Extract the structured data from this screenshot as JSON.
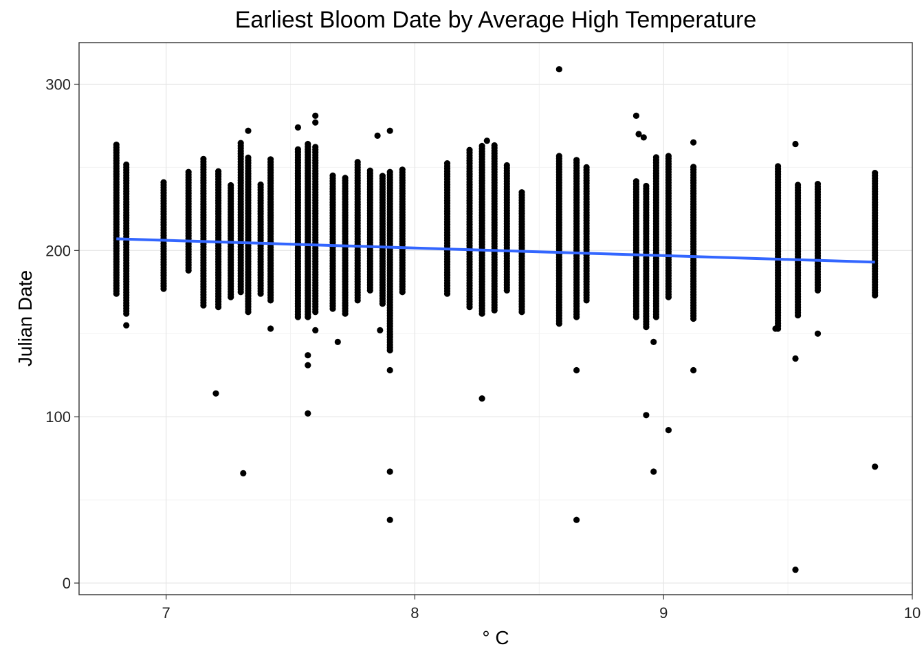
{
  "chart_data": {
    "type": "scatter",
    "title": "Earliest Bloom Date by Average High Temperature",
    "xlabel": "° C",
    "ylabel": "Julian Date",
    "xlim": [
      6.65,
      10.0
    ],
    "ylim": [
      -7,
      325
    ],
    "x_ticks": [
      7,
      8,
      9,
      10
    ],
    "y_ticks": [
      0,
      100,
      200,
      300
    ],
    "x_tick_labels": [
      "7",
      "8",
      "9",
      "10"
    ],
    "y_tick_labels": [
      "0",
      "100",
      "200",
      "300"
    ],
    "grid": true,
    "point_color": "#000000",
    "trend_line": {
      "color": "#3366FF",
      "points": [
        [
          6.8,
          207
        ],
        [
          9.85,
          193
        ]
      ]
    },
    "columns": [
      {
        "x": 6.8,
        "ymin": 174,
        "ymax": 264
      },
      {
        "x": 6.84,
        "ymin": 162,
        "ymax": 252
      },
      {
        "x": 6.99,
        "ymin": 177,
        "ymax": 242
      },
      {
        "x": 7.09,
        "ymin": 188,
        "ymax": 248
      },
      {
        "x": 7.15,
        "ymin": 167,
        "ymax": 256
      },
      {
        "x": 7.21,
        "ymin": 166,
        "ymax": 249
      },
      {
        "x": 7.26,
        "ymin": 172,
        "ymax": 240
      },
      {
        "x": 7.3,
        "ymin": 175,
        "ymax": 265
      },
      {
        "x": 7.33,
        "ymin": 163,
        "ymax": 257
      },
      {
        "x": 7.38,
        "ymin": 174,
        "ymax": 241
      },
      {
        "x": 7.42,
        "ymin": 170,
        "ymax": 255
      },
      {
        "x": 7.53,
        "ymin": 160,
        "ymax": 262
      },
      {
        "x": 7.57,
        "ymin": 160,
        "ymax": 265
      },
      {
        "x": 7.6,
        "ymin": 163,
        "ymax": 263
      },
      {
        "x": 7.67,
        "ymin": 165,
        "ymax": 245
      },
      {
        "x": 7.72,
        "ymin": 162,
        "ymax": 244
      },
      {
        "x": 7.77,
        "ymin": 170,
        "ymax": 254
      },
      {
        "x": 7.82,
        "ymin": 176,
        "ymax": 249
      },
      {
        "x": 7.87,
        "ymin": 168,
        "ymax": 245
      },
      {
        "x": 7.9,
        "ymin": 140,
        "ymax": 248
      },
      {
        "x": 7.95,
        "ymin": 175,
        "ymax": 250
      },
      {
        "x": 8.13,
        "ymin": 174,
        "ymax": 253
      },
      {
        "x": 8.22,
        "ymin": 166,
        "ymax": 261
      },
      {
        "x": 8.27,
        "ymin": 162,
        "ymax": 264
      },
      {
        "x": 8.32,
        "ymin": 164,
        "ymax": 264
      },
      {
        "x": 8.37,
        "ymin": 176,
        "ymax": 252
      },
      {
        "x": 8.43,
        "ymin": 163,
        "ymax": 235
      },
      {
        "x": 8.58,
        "ymin": 156,
        "ymax": 257
      },
      {
        "x": 8.65,
        "ymin": 160,
        "ymax": 255
      },
      {
        "x": 8.69,
        "ymin": 170,
        "ymax": 251
      },
      {
        "x": 8.89,
        "ymin": 160,
        "ymax": 243
      },
      {
        "x": 8.93,
        "ymin": 154,
        "ymax": 239
      },
      {
        "x": 8.97,
        "ymin": 160,
        "ymax": 257
      },
      {
        "x": 9.02,
        "ymin": 172,
        "ymax": 258
      },
      {
        "x": 9.12,
        "ymin": 159,
        "ymax": 251
      },
      {
        "x": 9.46,
        "ymin": 153,
        "ymax": 252
      },
      {
        "x": 9.54,
        "ymin": 161,
        "ymax": 240
      },
      {
        "x": 9.62,
        "ymin": 176,
        "ymax": 240
      },
      {
        "x": 9.85,
        "ymin": 173,
        "ymax": 247
      }
    ],
    "outliers": [
      [
        6.84,
        155
      ],
      [
        7.2,
        114
      ],
      [
        7.31,
        66
      ],
      [
        7.33,
        272
      ],
      [
        7.42,
        153
      ],
      [
        7.53,
        274
      ],
      [
        7.57,
        102
      ],
      [
        7.57,
        131
      ],
      [
        7.57,
        137
      ],
      [
        7.6,
        281
      ],
      [
        7.6,
        277
      ],
      [
        7.6,
        152
      ],
      [
        7.69,
        145
      ],
      [
        7.85,
        269
      ],
      [
        7.86,
        152
      ],
      [
        7.9,
        272
      ],
      [
        7.9,
        67
      ],
      [
        7.9,
        38
      ],
      [
        7.9,
        128
      ],
      [
        8.27,
        111
      ],
      [
        8.29,
        266
      ],
      [
        8.58,
        309
      ],
      [
        8.65,
        38
      ],
      [
        8.65,
        128
      ],
      [
        8.89,
        281
      ],
      [
        8.9,
        270
      ],
      [
        8.92,
        268
      ],
      [
        8.93,
        101
      ],
      [
        8.96,
        67
      ],
      [
        8.96,
        145
      ],
      [
        9.02,
        92
      ],
      [
        9.12,
        128
      ],
      [
        9.12,
        265
      ],
      [
        9.45,
        153
      ],
      [
        9.53,
        8
      ],
      [
        9.53,
        135
      ],
      [
        9.53,
        264
      ],
      [
        9.62,
        150
      ],
      [
        9.85,
        70
      ]
    ]
  }
}
